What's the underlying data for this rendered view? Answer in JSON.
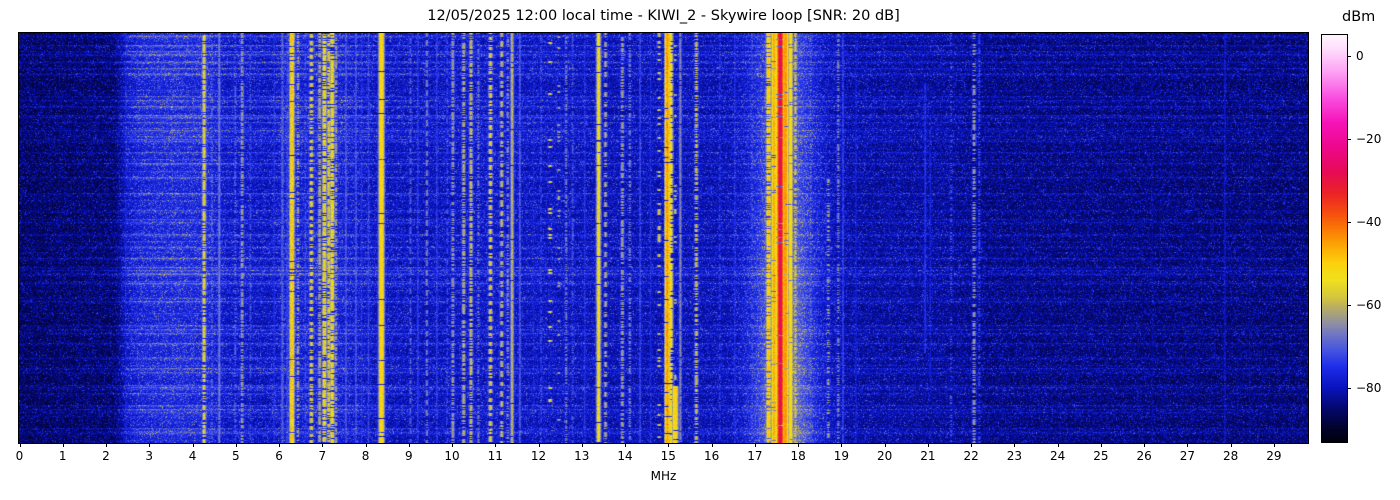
{
  "figure": {
    "title": "12/05/2025 12:00 local time - KIWI_2 - Skywire loop [SNR: 20 dB]",
    "x_axis_label": "MHz",
    "colorbar_label": "dBm"
  },
  "chart_data": {
    "type": "heatmap",
    "subtype": "radio-spectrum-waterfall",
    "title": "12/05/2025 12:00 local time - KIWI_2 - Skywire loop [SNR: 20 dB]",
    "timestamp_label": "12/05/2025 12:00 local time",
    "station": "KIWI_2",
    "antenna": "Skywire loop",
    "snr_db": 20,
    "xlabel": "MHz",
    "x_range_mhz": [
      0,
      29.8
    ],
    "x_ticks": [
      0,
      1,
      2,
      3,
      4,
      5,
      6,
      7,
      8,
      9,
      10,
      11,
      12,
      13,
      14,
      15,
      16,
      17,
      18,
      19,
      20,
      21,
      22,
      23,
      24,
      25,
      26,
      27,
      28,
      29
    ],
    "y_axis_note": "time, no tick labels shown",
    "colorbar": {
      "label": "dBm",
      "vmax": 5,
      "vmin": -93,
      "ticks": [
        0,
        -20,
        -40,
        -60,
        -80
      ],
      "colormap_stops": [
        [
          -95,
          "#000000"
        ],
        [
          -90,
          "#020228"
        ],
        [
          -85,
          "#05086e"
        ],
        [
          -80,
          "#0a14be"
        ],
        [
          -75,
          "#1e2deb"
        ],
        [
          -71,
          "#4655e1"
        ],
        [
          -67,
          "#7378c3"
        ],
        [
          -64,
          "#96949b"
        ],
        [
          -61,
          "#b4ac69"
        ],
        [
          -58,
          "#d7c83c"
        ],
        [
          -54,
          "#f0e11e"
        ],
        [
          -50,
          "#fcd20f"
        ],
        [
          -46,
          "#fcaa05"
        ],
        [
          -42,
          "#fa7d05"
        ],
        [
          -38,
          "#f5500f"
        ],
        [
          -33,
          "#eb2328"
        ],
        [
          -28,
          "#e60c55"
        ],
        [
          -22,
          "#ee088c"
        ],
        [
          -16,
          "#f614b9"
        ],
        [
          -10,
          "#fa50e1"
        ],
        [
          -4,
          "#fda0f5"
        ],
        [
          2,
          "#ffe1fc"
        ],
        [
          5,
          "#fff5ff"
        ]
      ]
    },
    "noise_floor_dbm": [
      [
        0,
        -89.5
      ],
      [
        2.2,
        -89
      ],
      [
        2.5,
        -83
      ],
      [
        2.8,
        -80.8
      ],
      [
        3.6,
        -79.8
      ],
      [
        4.4,
        -80.5
      ],
      [
        4.8,
        -83
      ],
      [
        5.8,
        -83.5
      ],
      [
        6.2,
        -81.8
      ],
      [
        7.4,
        -81.2
      ],
      [
        8.2,
        -83.5
      ],
      [
        9.3,
        -84
      ],
      [
        10.8,
        -83.2
      ],
      [
        12.5,
        -83.6
      ],
      [
        14.0,
        -84.5
      ],
      [
        15.5,
        -84.2
      ],
      [
        16.5,
        -84.5
      ],
      [
        19.6,
        -85.5
      ],
      [
        21.5,
        -86
      ],
      [
        22.4,
        -87.5
      ],
      [
        29.8,
        -88.5
      ]
    ],
    "streak_mask": [
      [
        0,
        0.55
      ],
      [
        2.3,
        0.8
      ],
      [
        2.6,
        1.3
      ],
      [
        8.5,
        1.2
      ],
      [
        9.5,
        1.0
      ],
      [
        16,
        0.85
      ],
      [
        19.5,
        0.8
      ],
      [
        22.4,
        0.75
      ],
      [
        29.8,
        0.7
      ]
    ],
    "glow": {
      "center_mhz": 17.7,
      "sigma_mhz": 0.52,
      "amp_db": 13
    },
    "signals": [
      {
        "f": 0.93,
        "lvl": -85,
        "st": "solid",
        "w": 1
      },
      {
        "f": 1.62,
        "lvl": -86,
        "st": "solid",
        "w": 1
      },
      {
        "f": 2.47,
        "lvl": -78,
        "st": "solid",
        "w": 1
      },
      {
        "f": 3.32,
        "lvl": -80,
        "st": "solid",
        "w": 1
      },
      {
        "f": 4.28,
        "lvl": -57,
        "st": "speck",
        "d": 0.75,
        "w": 1.4
      },
      {
        "f": 4.46,
        "lvl": -70,
        "st": "speck",
        "d": 0.5,
        "w": 1
      },
      {
        "f": 4.63,
        "lvl": -67,
        "st": "solid",
        "w": 1
      },
      {
        "f": 5.0,
        "lvl": -70,
        "st": "speck",
        "d": 0.5,
        "w": 1
      },
      {
        "f": 5.16,
        "lvl": -64,
        "st": "speck",
        "d": 0.6,
        "w": 1.4
      },
      {
        "f": 5.35,
        "lvl": -72,
        "st": "dash",
        "w": 1
      },
      {
        "f": 5.9,
        "lvl": -76,
        "st": "solid",
        "w": 1
      },
      {
        "f": 6.09,
        "lvl": -70,
        "st": "solid",
        "w": 1.4
      },
      {
        "f": 6.2,
        "lvl": -73,
        "st": "solid",
        "w": 1
      },
      {
        "f": 6.31,
        "lvl": -50,
        "st": "solid",
        "w": 1.5,
        "j": 9
      },
      {
        "f": 6.45,
        "lvl": -63,
        "st": "speck",
        "d": 0.5,
        "w": 1
      },
      {
        "f": 6.62,
        "lvl": -72,
        "st": "dash",
        "w": 1
      },
      {
        "f": 6.76,
        "lvl": -57,
        "st": "dash",
        "d": 0.5,
        "p": 7,
        "w": 1.5
      },
      {
        "f": 6.95,
        "lvl": -62,
        "st": "speck",
        "d": 0.7,
        "w": 1.4
      },
      {
        "f": 7.06,
        "lvl": -56,
        "st": "speck",
        "d": 0.8,
        "w": 2,
        "j": 8
      },
      {
        "f": 7.16,
        "lvl": -58,
        "st": "speck",
        "d": 0.75,
        "w": 1.5,
        "j": 8
      },
      {
        "f": 7.24,
        "lvl": -55,
        "st": "speck",
        "d": 0.8,
        "w": 2,
        "j": 9
      },
      {
        "f": 7.33,
        "lvl": -64,
        "st": "speck",
        "d": 0.6,
        "w": 1
      },
      {
        "f": 7.56,
        "lvl": -72,
        "st": "solid",
        "w": 1
      },
      {
        "f": 7.79,
        "lvl": -72,
        "st": "solid",
        "w": 1
      },
      {
        "f": 7.92,
        "lvl": -75,
        "st": "solid",
        "w": 1
      },
      {
        "f": 8.08,
        "lvl": -73,
        "st": "solid",
        "w": 1
      },
      {
        "f": 8.38,
        "lvl": -51,
        "st": "solid",
        "w": 2.4,
        "j": 5
      },
      {
        "f": 8.75,
        "lvl": -78,
        "st": "dash",
        "w": 1
      },
      {
        "f": 9.05,
        "lvl": -70,
        "st": "dash",
        "w": 1
      },
      {
        "f": 9.22,
        "lvl": -74,
        "st": "solid",
        "w": 1
      },
      {
        "f": 9.43,
        "lvl": -67,
        "st": "dash",
        "d": 0.6,
        "w": 1
      },
      {
        "f": 9.66,
        "lvl": -74,
        "st": "solid",
        "w": 1
      },
      {
        "f": 9.9,
        "lvl": -73,
        "st": "dash",
        "w": 1
      },
      {
        "f": 10.03,
        "lvl": -64,
        "st": "speck",
        "d": 0.6,
        "w": 1.4
      },
      {
        "f": 10.28,
        "lvl": -61,
        "st": "speck",
        "d": 0.65,
        "w": 1.4
      },
      {
        "f": 10.45,
        "lvl": -60,
        "st": "speck",
        "d": 0.65,
        "w": 1.4
      },
      {
        "f": 10.62,
        "lvl": -67,
        "st": "speck",
        "d": 0.5,
        "w": 1
      },
      {
        "f": 10.9,
        "lvl": -57,
        "st": "dash",
        "d": 0.6,
        "p": 8,
        "w": 1.4
      },
      {
        "f": 11.16,
        "lvl": -60,
        "st": "dash",
        "d": 0.55,
        "p": 10,
        "w": 1.2
      },
      {
        "f": 11.3,
        "lvl": -65,
        "st": "speck",
        "d": 0.5,
        "w": 1
      },
      {
        "f": 11.4,
        "lvl": -61,
        "st": "solid",
        "w": 1.3
      },
      {
        "f": 11.58,
        "lvl": -71,
        "st": "solid",
        "w": 1
      },
      {
        "f": 11.9,
        "lvl": -78,
        "st": "solid",
        "w": 1
      },
      {
        "f": 12.07,
        "lvl": -74,
        "st": "dash",
        "w": 1
      },
      {
        "f": 12.28,
        "lvl": -56,
        "st": "dots",
        "d": 0.06,
        "w": 1.4
      },
      {
        "f": 12.48,
        "lvl": -62,
        "st": "dots",
        "d": 0.05,
        "w": 1
      },
      {
        "f": 12.65,
        "lvl": -67,
        "st": "speck",
        "d": 0.5,
        "w": 1
      },
      {
        "f": 12.8,
        "lvl": -71,
        "st": "speck",
        "d": 0.5,
        "w": 1
      },
      {
        "f": 13.08,
        "lvl": -75,
        "st": "solid",
        "w": 1
      },
      {
        "f": 13.4,
        "lvl": -54,
        "st": "solid",
        "w": 1.5,
        "j": 7
      },
      {
        "f": 13.56,
        "lvl": -61,
        "st": "dash",
        "d": 0.5,
        "w": 1
      },
      {
        "f": 13.95,
        "lvl": -63,
        "st": "speck",
        "d": 0.6,
        "w": 1.4
      },
      {
        "f": 14.12,
        "lvl": -66,
        "st": "speck",
        "d": 0.5,
        "w": 1
      },
      {
        "f": 14.36,
        "lvl": -73,
        "st": "solid",
        "w": 1
      },
      {
        "f": 14.6,
        "lvl": -76,
        "st": "solid",
        "w": 1
      },
      {
        "f": 14.8,
        "lvl": -58,
        "st": "dots",
        "d": 0.1,
        "w": 1
      },
      {
        "f": 14.99,
        "lvl": -44,
        "st": "solid",
        "w": 1.3,
        "j": 8
      },
      {
        "f": 15.07,
        "lvl": -54,
        "st": "speck",
        "d": 0.8,
        "w": 1.5
      },
      {
        "f": 15.17,
        "lvl": -60,
        "st": "dots",
        "d": 0.08,
        "w": 1,
        "seg": [
          0,
          0.85
        ]
      },
      {
        "f": 15.17,
        "lvl": -51,
        "st": "solid",
        "w": 2.8,
        "seg": [
          0.86,
          1
        ]
      },
      {
        "f": 15.29,
        "lvl": -66,
        "st": "solid",
        "w": 1
      },
      {
        "f": 15.66,
        "lvl": -59,
        "st": "speck",
        "d": 0.6,
        "w": 1.2
      },
      {
        "f": 16.2,
        "lvl": -74,
        "st": "dash",
        "w": 1
      },
      {
        "f": 16.55,
        "lvl": -76,
        "st": "solid",
        "w": 1
      },
      {
        "f": 16.95,
        "lvl": -72,
        "st": "dash",
        "d": 0.5,
        "w": 1
      },
      {
        "f": 17.33,
        "lvl": -49,
        "st": "speck",
        "d": 0.8,
        "w": 1.4,
        "j": 7
      },
      {
        "f": 17.45,
        "lvl": -47,
        "st": "solid",
        "w": 1.4,
        "j": 6
      },
      {
        "f": 17.6,
        "lvl": -27,
        "st": "solid",
        "w": 1.8,
        "j": 5
      },
      {
        "f": 17.72,
        "lvl": -45,
        "st": "solid",
        "w": 2.4,
        "j": 5
      },
      {
        "f": 17.84,
        "lvl": -52,
        "st": "solid",
        "w": 1.4,
        "j": 5
      },
      {
        "f": 17.95,
        "lvl": -58,
        "st": "speck",
        "d": 0.6,
        "w": 1
      },
      {
        "f": 18.3,
        "lvl": -68,
        "st": "speck",
        "d": 0.4,
        "w": 1
      },
      {
        "f": 18.71,
        "lvl": -62,
        "st": "speck",
        "d": 0.35,
        "w": 1,
        "seg": [
          0.35,
          1
        ]
      },
      {
        "f": 18.94,
        "lvl": -66,
        "st": "speck",
        "d": 0.5,
        "w": 1
      },
      {
        "f": 19.05,
        "lvl": -74,
        "st": "solid",
        "w": 1
      },
      {
        "f": 19.35,
        "lvl": -79,
        "st": "solid",
        "w": 1
      },
      {
        "f": 20.12,
        "lvl": -81,
        "st": "solid",
        "w": 1
      },
      {
        "f": 20.95,
        "lvl": -75,
        "st": "solid",
        "w": 1,
        "seg": [
          0.12,
          0.78
        ]
      },
      {
        "f": 21.07,
        "lvl": -77,
        "st": "solid",
        "w": 1,
        "seg": [
          0.2,
          0.85
        ]
      },
      {
        "f": 21.55,
        "lvl": -71,
        "st": "speck",
        "d": 0.3,
        "w": 1
      },
      {
        "f": 22.08,
        "lvl": -64,
        "st": "speck",
        "d": 0.55,
        "w": 1.4
      },
      {
        "f": 22.2,
        "lvl": -72,
        "st": "speck",
        "d": 0.5,
        "w": 1
      },
      {
        "f": 23.3,
        "lvl": -85,
        "st": "solid",
        "w": 1
      },
      {
        "f": 25.0,
        "lvl": -84,
        "st": "dash",
        "w": 1
      },
      {
        "f": 26.2,
        "lvl": -83,
        "st": "solid",
        "w": 1
      },
      {
        "f": 27.88,
        "lvl": -80,
        "st": "solid",
        "w": 1
      },
      {
        "f": 28.45,
        "lvl": -82,
        "st": "solid",
        "w": 1
      }
    ]
  }
}
